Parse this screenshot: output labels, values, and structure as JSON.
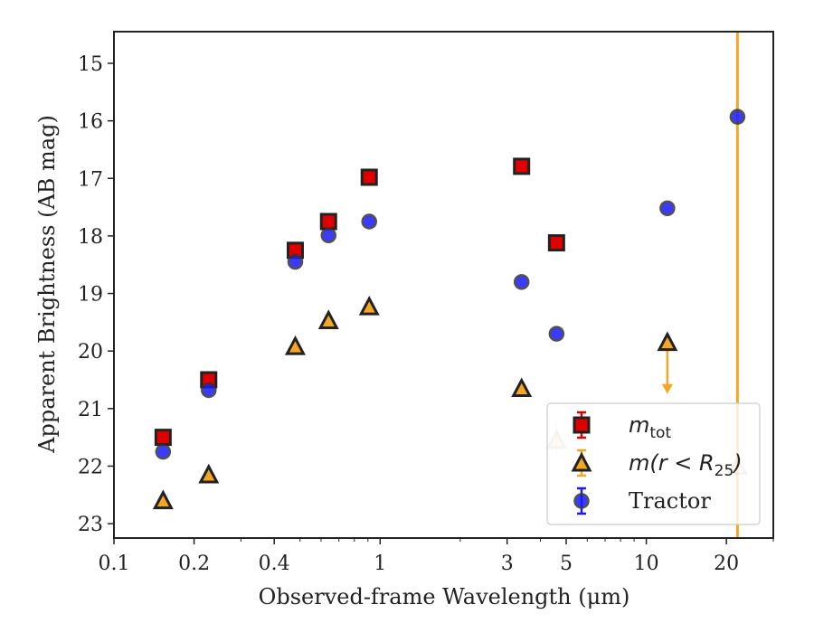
{
  "chart_data": {
    "type": "scatter",
    "xlabel": "Observed-frame Wavelength (μm)",
    "ylabel": "Apparent Brightness (AB mag)",
    "x_scale": "log",
    "xlim": [
      0.1,
      30
    ],
    "ylim": [
      23.25,
      14.45
    ],
    "y_inverted": true,
    "grid": false,
    "x_ticks": [
      {
        "value": 0.1,
        "label": "0.1"
      },
      {
        "value": 0.2,
        "label": "0.2"
      },
      {
        "value": 0.4,
        "label": "0.4"
      },
      {
        "value": 1,
        "label": "1"
      },
      {
        "value": 3,
        "label": "3"
      },
      {
        "value": 5,
        "label": "5"
      },
      {
        "value": 10,
        "label": "10"
      },
      {
        "value": 20,
        "label": "20"
      }
    ],
    "y_ticks": [
      15,
      16,
      17,
      18,
      19,
      20,
      21,
      22,
      23
    ],
    "vertical_line": {
      "x": 22,
      "color": "#f5a623"
    },
    "legend_position": "lower right",
    "series": [
      {
        "name": "m_tot",
        "label_main": "m",
        "label_sub": "tot",
        "marker": "square",
        "color": "#e00000",
        "errcolor": "#e00000",
        "x": [
          0.153,
          0.227,
          0.48,
          0.64,
          0.91,
          3.4,
          4.6
        ],
        "y": [
          21.5,
          20.5,
          18.25,
          17.75,
          16.98,
          16.79,
          18.12
        ]
      },
      {
        "name": "m(r < R25)",
        "label_main": "m(r < R",
        "label_sub": "25",
        "label_end": ")",
        "marker": "triangle",
        "color": "#f5a623",
        "errcolor": "#f5a623",
        "x": [
          0.153,
          0.227,
          0.48,
          0.64,
          0.91,
          3.4,
          4.6,
          12,
          22
        ],
        "y": [
          22.6,
          22.15,
          19.92,
          19.47,
          19.23,
          20.65,
          21.55,
          19.85,
          22.0
        ],
        "faded": [
          false,
          false,
          false,
          false,
          false,
          false,
          true,
          false,
          true
        ],
        "upper_limit": [
          false,
          false,
          false,
          false,
          false,
          false,
          false,
          true,
          false
        ]
      },
      {
        "name": "Tractor",
        "label_main": "Tractor",
        "marker": "circle",
        "color": "#1a1aff",
        "errcolor": "#1a1aff",
        "x": [
          0.153,
          0.227,
          0.48,
          0.64,
          0.91,
          3.4,
          4.6,
          12,
          22
        ],
        "y": [
          21.75,
          20.68,
          18.45,
          17.99,
          17.75,
          18.8,
          19.7,
          17.52,
          15.93
        ]
      }
    ]
  }
}
